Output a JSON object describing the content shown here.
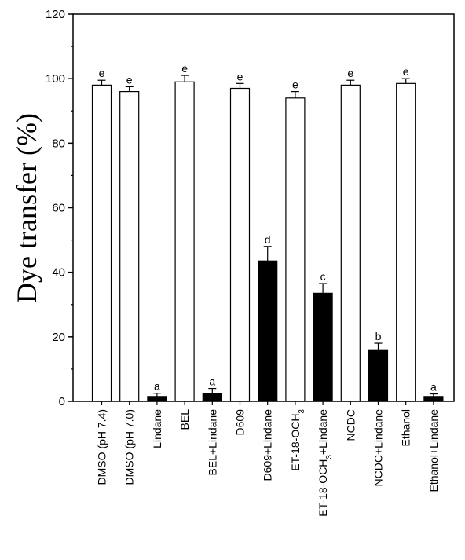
{
  "chart_data": {
    "type": "bar",
    "title": "",
    "xlabel": "",
    "ylabel": "Dye transfer (%)",
    "ylim": [
      0,
      120
    ],
    "yticks": [
      0,
      20,
      40,
      60,
      80,
      100,
      120
    ],
    "grid": false,
    "categories": [
      "DMSO (pH 7.4)",
      "DMSO (pH 7.0)",
      "Lindane",
      "BEL",
      "BEL+Lindane",
      "D609",
      "D609+Lindane",
      "ET-18-OCH3",
      "ET-18-OCH3+Lindane",
      "NCDC",
      "NCDC+Lindane",
      "Ethanol",
      "Ethanol+Lindane"
    ],
    "values": [
      98,
      96,
      1.5,
      99,
      2.5,
      97,
      43.5,
      94,
      33.5,
      98,
      16,
      98.5,
      1.5
    ],
    "errors": [
      1.5,
      1.5,
      1,
      2,
      1.5,
      1.5,
      4.5,
      2,
      3,
      1.5,
      2,
      1.5,
      0.8
    ],
    "significance": [
      "e",
      "e",
      "a",
      "e",
      "a",
      "e",
      "d",
      "e",
      "c",
      "e",
      "b",
      "e",
      "a"
    ],
    "bar_fill": [
      "#ffffff",
      "#ffffff",
      "#000000",
      "#ffffff",
      "#000000",
      "#ffffff",
      "#000000",
      "#ffffff",
      "#000000",
      "#ffffff",
      "#000000",
      "#ffffff",
      "#000000"
    ]
  }
}
